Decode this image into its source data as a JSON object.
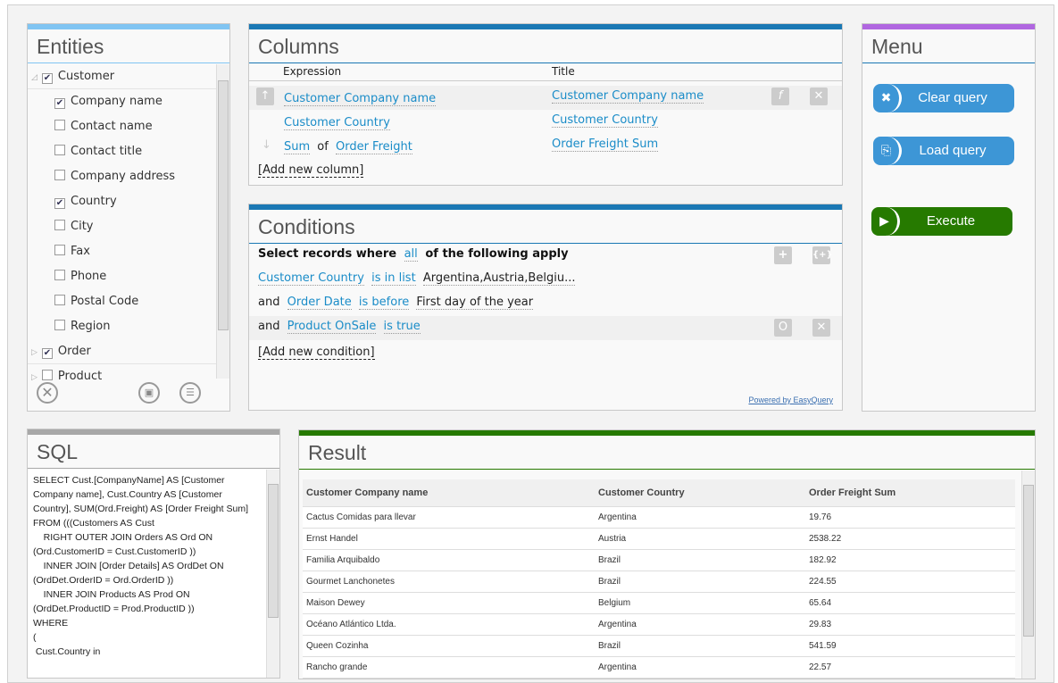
{
  "entities": {
    "title": "Entities",
    "groups": [
      {
        "label": "Customer",
        "checked": true,
        "expanded": true,
        "items": [
          {
            "label": "Company name",
            "checked": true
          },
          {
            "label": "Contact name",
            "checked": false
          },
          {
            "label": "Contact title",
            "checked": false
          },
          {
            "label": "Company address",
            "checked": false
          },
          {
            "label": "Country",
            "checked": true
          },
          {
            "label": "City",
            "checked": false
          },
          {
            "label": "Fax",
            "checked": false
          },
          {
            "label": "Phone",
            "checked": false
          },
          {
            "label": "Postal Code",
            "checked": false
          },
          {
            "label": "Region",
            "checked": false
          }
        ]
      },
      {
        "label": "Order",
        "checked": true,
        "expanded": false
      },
      {
        "label": "Product",
        "checked": false,
        "expanded": false
      }
    ]
  },
  "columns": {
    "title": "Columns",
    "header_expression": "Expression",
    "header_title": "Title",
    "rows": [
      {
        "expr": "Customer Company name",
        "title": "Customer Company name"
      },
      {
        "expr": "Customer Country",
        "title": "Customer Country"
      },
      {
        "agg": "Sum",
        "of": "of",
        "expr": "Order Freight",
        "title": "Order Freight Sum"
      }
    ],
    "add": "[Add new column]"
  },
  "conditions": {
    "title": "Conditions",
    "lead": "Select records where",
    "mode": "all",
    "tail": "of the following apply",
    "rows": [
      {
        "conj": "",
        "attr": "Customer Country",
        "op": "is in list",
        "value": "Argentina,Austria,Belgiu..."
      },
      {
        "conj": "and",
        "attr": "Order Date",
        "op": "is before",
        "value": "First day of the year"
      },
      {
        "conj": "and",
        "attr": "Product OnSale",
        "op": "is true",
        "value": ""
      }
    ],
    "add": "[Add new condition]",
    "powered": "Powered by EasyQuery"
  },
  "menu": {
    "title": "Menu",
    "clear": "Clear query",
    "load": "Load query",
    "execute": "Execute",
    "colors": {
      "blue": "#3d96d6",
      "green": "#267a00"
    }
  },
  "sql": {
    "title": "SQL",
    "text": "SELECT Cust.[CompanyName] AS [Customer Company name], Cust.Country AS [Customer Country], SUM(Ord.Freight) AS [Order Freight Sum]\nFROM (((Customers AS Cust\n    RIGHT OUTER JOIN Orders AS Ord ON (Ord.CustomerID = Cust.CustomerID ))\n    INNER JOIN [Order Details] AS OrdDet ON (OrdDet.OrderID = Ord.OrderID ))\n    INNER JOIN Products AS Prod ON (OrdDet.ProductID = Prod.ProductID ))\nWHERE\n(\n Cust.Country in"
  },
  "result": {
    "title": "Result",
    "headers": [
      "Customer Company name",
      "Customer Country",
      "Order Freight Sum"
    ],
    "rows": [
      [
        "Cactus Comidas para llevar",
        "Argentina",
        "19.76"
      ],
      [
        "Ernst Handel",
        "Austria",
        "2538.22"
      ],
      [
        "Familia Arquibaldo",
        "Brazil",
        "182.92"
      ],
      [
        "Gourmet Lanchonetes",
        "Brazil",
        "224.55"
      ],
      [
        "Maison Dewey",
        "Belgium",
        "65.64"
      ],
      [
        "Océano Atlántico Ltda.",
        "Argentina",
        "29.83"
      ],
      [
        "Queen Cozinha",
        "Brazil",
        "541.59"
      ],
      [
        "Rancho grande",
        "Argentina",
        "22.57"
      ]
    ]
  }
}
